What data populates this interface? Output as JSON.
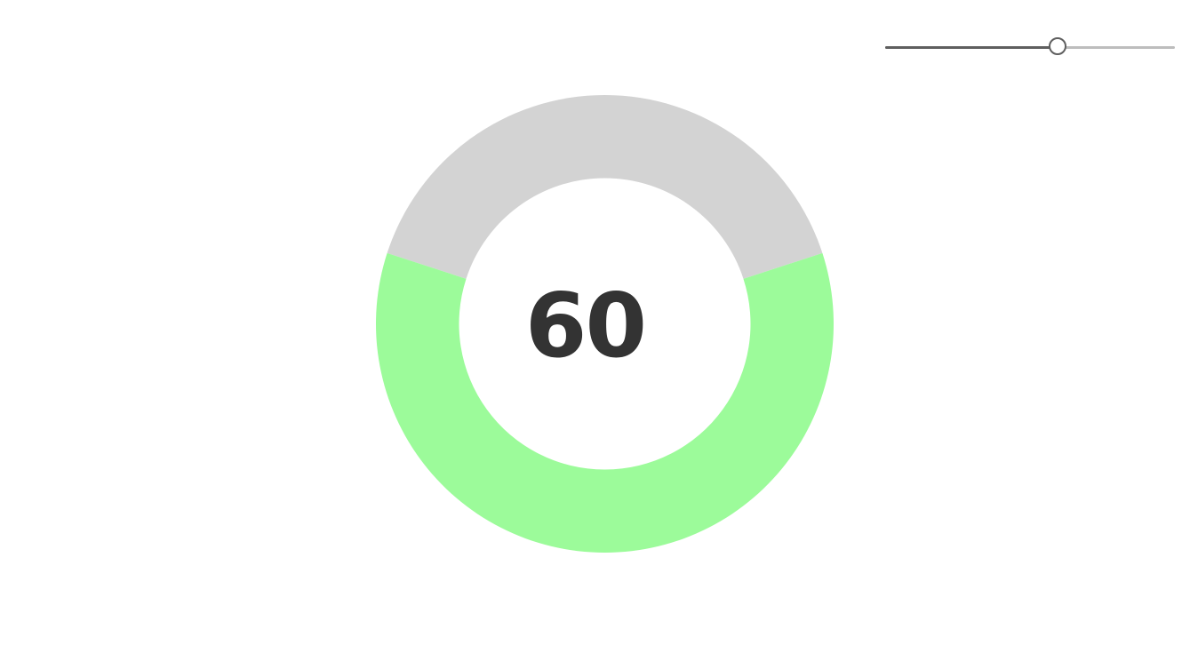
{
  "gauge": {
    "value": "60",
    "fraction": 0.6,
    "fill_color": "#9cfb9a",
    "track_color": "#d3d3d3"
  },
  "slider": {
    "fraction": 0.6,
    "fill_color": "#5f5f5f",
    "track_color": "#bdbdbd"
  }
}
